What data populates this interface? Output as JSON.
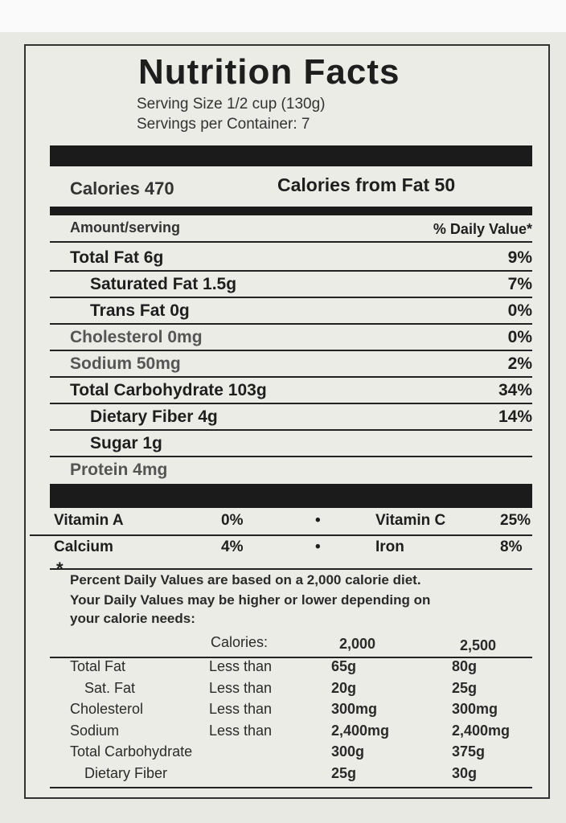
{
  "header": {
    "title": "Nutrition Facts",
    "serving_size": "Serving Size 1/2 cup (130g)",
    "servings_per_container": "Servings per Container: 7"
  },
  "calories": {
    "label": "Calories 470",
    "from_fat": "Calories from Fat 50"
  },
  "columns": {
    "amount": "Amount/serving",
    "daily_value": "% Daily Value*"
  },
  "nutrients": [
    {
      "name": "Total Fat 6g",
      "dv": "9%"
    },
    {
      "name": "Saturated Fat 1.5g",
      "dv": "7%"
    },
    {
      "name": "Trans Fat 0g",
      "dv": "0%"
    },
    {
      "name": "Cholesterol 0mg",
      "dv": "0%"
    },
    {
      "name": "Sodium 50mg",
      "dv": "2%"
    },
    {
      "name": "Total Carbohydrate 103g",
      "dv": "34%"
    },
    {
      "name": "Dietary Fiber 4g",
      "dv": "14%"
    },
    {
      "name": "Sugar 1g",
      "dv": ""
    },
    {
      "name": "Protein 4mg",
      "dv": ""
    }
  ],
  "vitamins": [
    {
      "left_name": "Vitamin A",
      "left_value": "0%",
      "bullet": "•",
      "right_name": "Vitamin C",
      "right_value": "25%"
    },
    {
      "left_name": "Calcium",
      "left_value": "4%",
      "bullet": "•",
      "right_name": "Iron",
      "right_value": "8%"
    }
  ],
  "footnote": {
    "asterisk": "*",
    "lines": [
      "Percent Daily Values are based on a 2,000 calorie diet.",
      "Your Daily Values may be higher or lower depending on",
      "your calorie needs:"
    ]
  },
  "reference_table": {
    "header": {
      "label": "Calories:",
      "col1": "2,000",
      "col2": "2,500"
    },
    "rows": [
      {
        "name": "Total Fat",
        "qualifier": "Less than",
        "v1": "65g",
        "v2": "80g"
      },
      {
        "name": "Sat. Fat",
        "qualifier": "Less than",
        "v1": "20g",
        "v2": "25g"
      },
      {
        "name": "Cholesterol",
        "qualifier": "Less than",
        "v1": "300mg",
        "v2": "300mg"
      },
      {
        "name": "Sodium",
        "qualifier": "Less than",
        "v1": "2,400mg",
        "v2": "2,400mg"
      },
      {
        "name": "Total Carbohydrate",
        "qualifier": "",
        "v1": "300g",
        "v2": "375g"
      },
      {
        "name": "Dietary Fiber",
        "qualifier": "",
        "v1": "25g",
        "v2": "30g"
      }
    ]
  }
}
